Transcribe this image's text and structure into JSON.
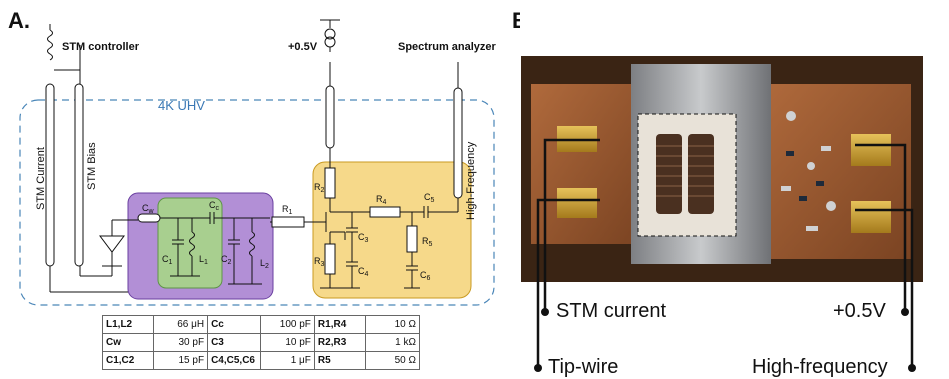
{
  "panels": {
    "a": "A.",
    "b": "B."
  },
  "schematic": {
    "stm_controller": "STM controller",
    "voltage_source": "+0.5V",
    "spectrum_analyzer": "Spectrum analyzer",
    "environment": "4K UHV",
    "stm_current": "STM Current",
    "stm_bias": "STM Bias",
    "high_frequency": "High-Frequency",
    "components": {
      "cw": "C",
      "cw_sub": "w",
      "cc": "C",
      "cc_sub": "c",
      "c1": "C",
      "c1_sub": "1",
      "l1": "L",
      "l1_sub": "1",
      "c2": "C",
      "c2_sub": "2",
      "l2": "L",
      "l2_sub": "2",
      "r1": "R",
      "r1_sub": "1",
      "r2": "R",
      "r2_sub": "2",
      "r3": "R",
      "r3_sub": "3",
      "r4": "R",
      "r4_sub": "4",
      "r5": "R",
      "r5_sub": "5",
      "c3": "C",
      "c3_sub": "3",
      "c4": "C",
      "c4_sub": "4",
      "c5": "C",
      "c5_sub": "5",
      "c6": "C",
      "c6_sub": "6"
    }
  },
  "table": {
    "rows": [
      [
        {
          "key": "L1,L2",
          "value": "66 μH"
        },
        {
          "key": "Cc",
          "value": "100 pF"
        },
        {
          "key": "R1,R4",
          "value": "10 Ω"
        }
      ],
      [
        {
          "key": "Cw",
          "value": "30 pF"
        },
        {
          "key": "C3",
          "value": "10 pF"
        },
        {
          "key": "R2,R3",
          "value": "1 kΩ"
        }
      ],
      [
        {
          "key": "C1,C2",
          "value": "15 pF"
        },
        {
          "key": "C4,C5,C6",
          "value": "1 μF"
        },
        {
          "key": "R5",
          "value": "50 Ω"
        }
      ]
    ]
  },
  "photo_labels": {
    "stm_current": "STM current",
    "tip_wire": "Tip-wire",
    "voltage": "+0.5V",
    "high_frequency": "High-frequency"
  },
  "colors": {
    "purple_box": "#b28fd6",
    "green_box": "#a8cf8f",
    "yellow_box": "#f6d98a",
    "dashed_border": "#4a86b8",
    "env_label": "#3a78b5"
  }
}
